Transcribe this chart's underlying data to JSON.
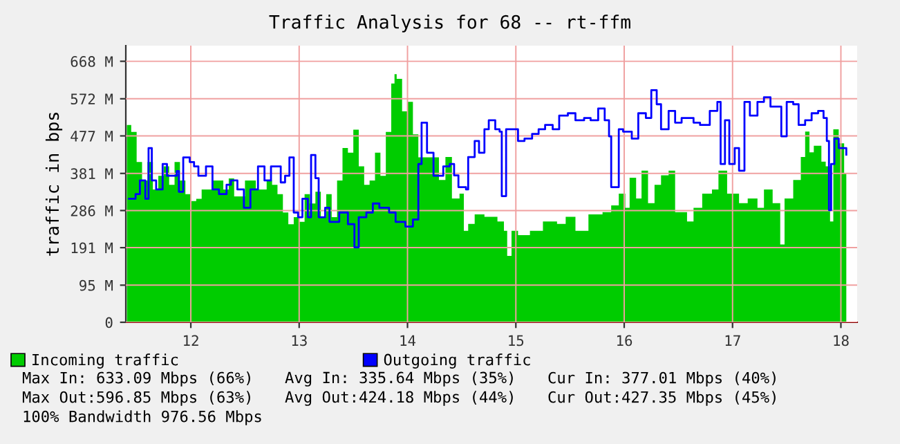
{
  "chart_data": {
    "type": "area",
    "title": "Traffic Analysis for 68 -- rt-ffm",
    "ylabel": "traffic in bps",
    "xlim": [
      11.4,
      18.15
    ],
    "xticks": [
      12,
      13,
      14,
      15,
      16,
      17,
      18
    ],
    "ylim": [
      0,
      708
    ],
    "yticks": [
      0,
      {
        "value": 95,
        "label": "95 M"
      },
      {
        "value": 191,
        "label": "191 M"
      },
      {
        "value": 286,
        "label": "286 M"
      },
      {
        "value": 381,
        "label": "381 M"
      },
      {
        "value": 477,
        "label": "477 M"
      },
      {
        "value": 572,
        "label": "572 M"
      },
      {
        "value": 668,
        "label": "668 M"
      }
    ],
    "grid": true,
    "legend": "bottom",
    "series": [
      {
        "name": "Incoming traffic",
        "color": "#00cc00",
        "x": [
          11.41,
          11.45,
          11.5,
          11.55,
          11.6,
          11.65,
          11.7,
          11.75,
          11.8,
          11.85,
          11.9,
          11.95,
          12.0,
          12.05,
          12.1,
          12.2,
          12.3,
          12.35,
          12.4,
          12.5,
          12.6,
          12.7,
          12.75,
          12.8,
          12.85,
          12.9,
          12.95,
          13.0,
          13.05,
          13.1,
          13.15,
          13.2,
          13.25,
          13.3,
          13.35,
          13.4,
          13.45,
          13.5,
          13.55,
          13.6,
          13.65,
          13.7,
          13.75,
          13.8,
          13.85,
          13.88,
          13.9,
          13.95,
          14.0,
          14.05,
          14.1,
          14.29,
          14.35,
          14.41,
          14.48,
          14.52,
          14.56,
          14.62,
          14.71,
          14.83,
          14.89,
          14.92,
          14.96,
          15.02,
          15.13,
          15.25,
          15.38,
          15.46,
          15.55,
          15.67,
          15.8,
          15.88,
          15.95,
          16.01,
          16.05,
          16.11,
          16.16,
          16.22,
          16.28,
          16.34,
          16.41,
          16.47,
          16.58,
          16.64,
          16.72,
          16.81,
          16.87,
          16.95,
          17.06,
          17.14,
          17.23,
          17.29,
          17.37,
          17.44,
          17.48,
          17.56,
          17.63,
          17.67,
          17.71,
          17.75,
          17.82,
          17.86,
          17.9,
          17.93,
          17.98,
          18.03,
          18.05
        ],
        "values": [
          505,
          487,
          410,
          363,
          410,
          340,
          375,
          399,
          352,
          410,
          363,
          328,
          310,
          316,
          340,
          363,
          340,
          368,
          322,
          363,
          340,
          363,
          352,
          328,
          281,
          251,
          269,
          257,
          328,
          304,
          334,
          269,
          328,
          269,
          363,
          446,
          434,
          493,
          399,
          352,
          363,
          434,
          375,
          487,
          611,
          635,
          623,
          540,
          564,
          481,
          422,
          364,
          423,
          317,
          329,
          234,
          252,
          276,
          270,
          258,
          234,
          170,
          234,
          223,
          234,
          258,
          252,
          270,
          234,
          276,
          282,
          299,
          329,
          293,
          370,
          317,
          388,
          305,
          352,
          376,
          388,
          282,
          258,
          293,
          329,
          340,
          388,
          329,
          305,
          317,
          293,
          340,
          305,
          199,
          317,
          364,
          423,
          488,
          435,
          452,
          411,
          399,
          258,
          494,
          458,
          382,
          382
        ]
      },
      {
        "name": "Outgoing traffic",
        "type": "step",
        "color": "#0000ff",
        "x": [
          11.43,
          11.49,
          11.53,
          11.58,
          11.61,
          11.64,
          11.68,
          11.74,
          11.78,
          11.87,
          11.89,
          11.93,
          11.99,
          12.03,
          12.07,
          12.14,
          12.2,
          12.26,
          12.33,
          12.37,
          12.43,
          12.49,
          12.55,
          12.62,
          12.68,
          12.74,
          12.83,
          12.87,
          12.91,
          12.95,
          12.99,
          13.03,
          13.08,
          13.11,
          13.15,
          13.18,
          13.24,
          13.28,
          13.37,
          13.45,
          13.51,
          13.55,
          13.62,
          13.68,
          13.74,
          13.83,
          13.89,
          13.98,
          14.05,
          14.1,
          14.13,
          14.18,
          14.24,
          14.33,
          14.39,
          14.43,
          14.47,
          14.54,
          14.56,
          14.62,
          14.66,
          14.71,
          14.75,
          14.81,
          14.85,
          14.87,
          14.91,
          14.96,
          15.02,
          15.08,
          15.15,
          15.21,
          15.27,
          15.34,
          15.4,
          15.48,
          15.55,
          15.63,
          15.69,
          15.76,
          15.82,
          15.86,
          15.88,
          15.95,
          15.99,
          16.07,
          16.13,
          16.2,
          16.25,
          16.3,
          16.34,
          16.41,
          16.47,
          16.53,
          16.64,
          16.7,
          16.79,
          16.86,
          16.89,
          16.93,
          16.97,
          17.02,
          17.06,
          17.11,
          17.16,
          17.23,
          17.29,
          17.35,
          17.42,
          17.45,
          17.5,
          17.56,
          17.61,
          17.67,
          17.73,
          17.79,
          17.84,
          17.87,
          17.89,
          17.91,
          17.94,
          17.98,
          18.05
        ],
        "values": [
          316,
          328,
          363,
          316,
          446,
          363,
          340,
          405,
          375,
          387,
          334,
          422,
          410,
          399,
          375,
          399,
          340,
          328,
          352,
          363,
          340,
          293,
          340,
          399,
          363,
          399,
          358,
          375,
          422,
          281,
          269,
          316,
          269,
          428,
          369,
          269,
          293,
          257,
          281,
          251,
          192,
          269,
          281,
          304,
          293,
          281,
          257,
          245,
          263,
          405,
          511,
          434,
          375,
          399,
          405,
          376,
          346,
          340,
          423,
          464,
          434,
          494,
          517,
          494,
          488,
          323,
          494,
          494,
          464,
          470,
          482,
          494,
          505,
          494,
          529,
          535,
          517,
          523,
          517,
          547,
          517,
          476,
          346,
          494,
          488,
          470,
          535,
          523,
          594,
          558,
          494,
          541,
          511,
          523,
          511,
          505,
          541,
          564,
          405,
          517,
          405,
          446,
          388,
          564,
          529,
          564,
          576,
          552,
          552,
          476,
          564,
          558,
          505,
          517,
          535,
          541,
          523,
          464,
          287,
          405,
          470,
          446,
          429
        ]
      }
    ],
    "annotations": [
      "Max In: 633.09 Mbps (66%)",
      "Avg In: 335.64 Mbps (35%)",
      "Cur In: 377.01 Mbps (40%)",
      "Max Out:596.85 Mbps (63%)",
      "Avg Out:424.18 Mbps (44%)",
      "Cur Out:427.35 Mbps (45%)",
      "100% Bandwidth 976.56 Mbps"
    ]
  }
}
